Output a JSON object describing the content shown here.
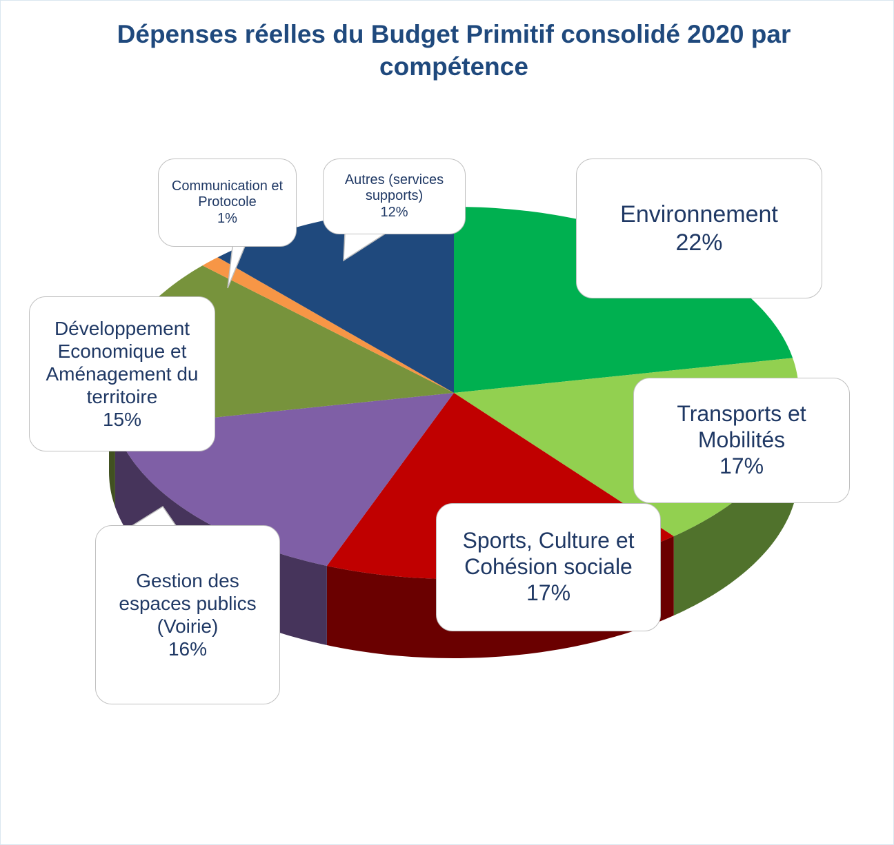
{
  "chart_data": {
    "type": "pie",
    "title": "Dépenses réelles du Budget Primitif consolidé 2020 par compétence",
    "categories": [
      "Environnement",
      "Transports et Mobilités",
      "Sports, Culture et Cohésion sociale",
      "Gestion des espaces publics (Voirie)",
      "Développement Economique et Aménagement du territoire",
      "Communication et Protocole",
      "Autres (services supports)"
    ],
    "values": [
      22,
      17,
      17,
      16,
      15,
      1,
      12
    ],
    "value_labels": [
      "22%",
      "17%",
      "17%",
      "16%",
      "15%",
      "1%",
      "12%"
    ],
    "colors": [
      "#00b050",
      "#92d050",
      "#c00000",
      "#7f5fa6",
      "#77933c",
      "#f79646",
      "#1f497d"
    ]
  }
}
